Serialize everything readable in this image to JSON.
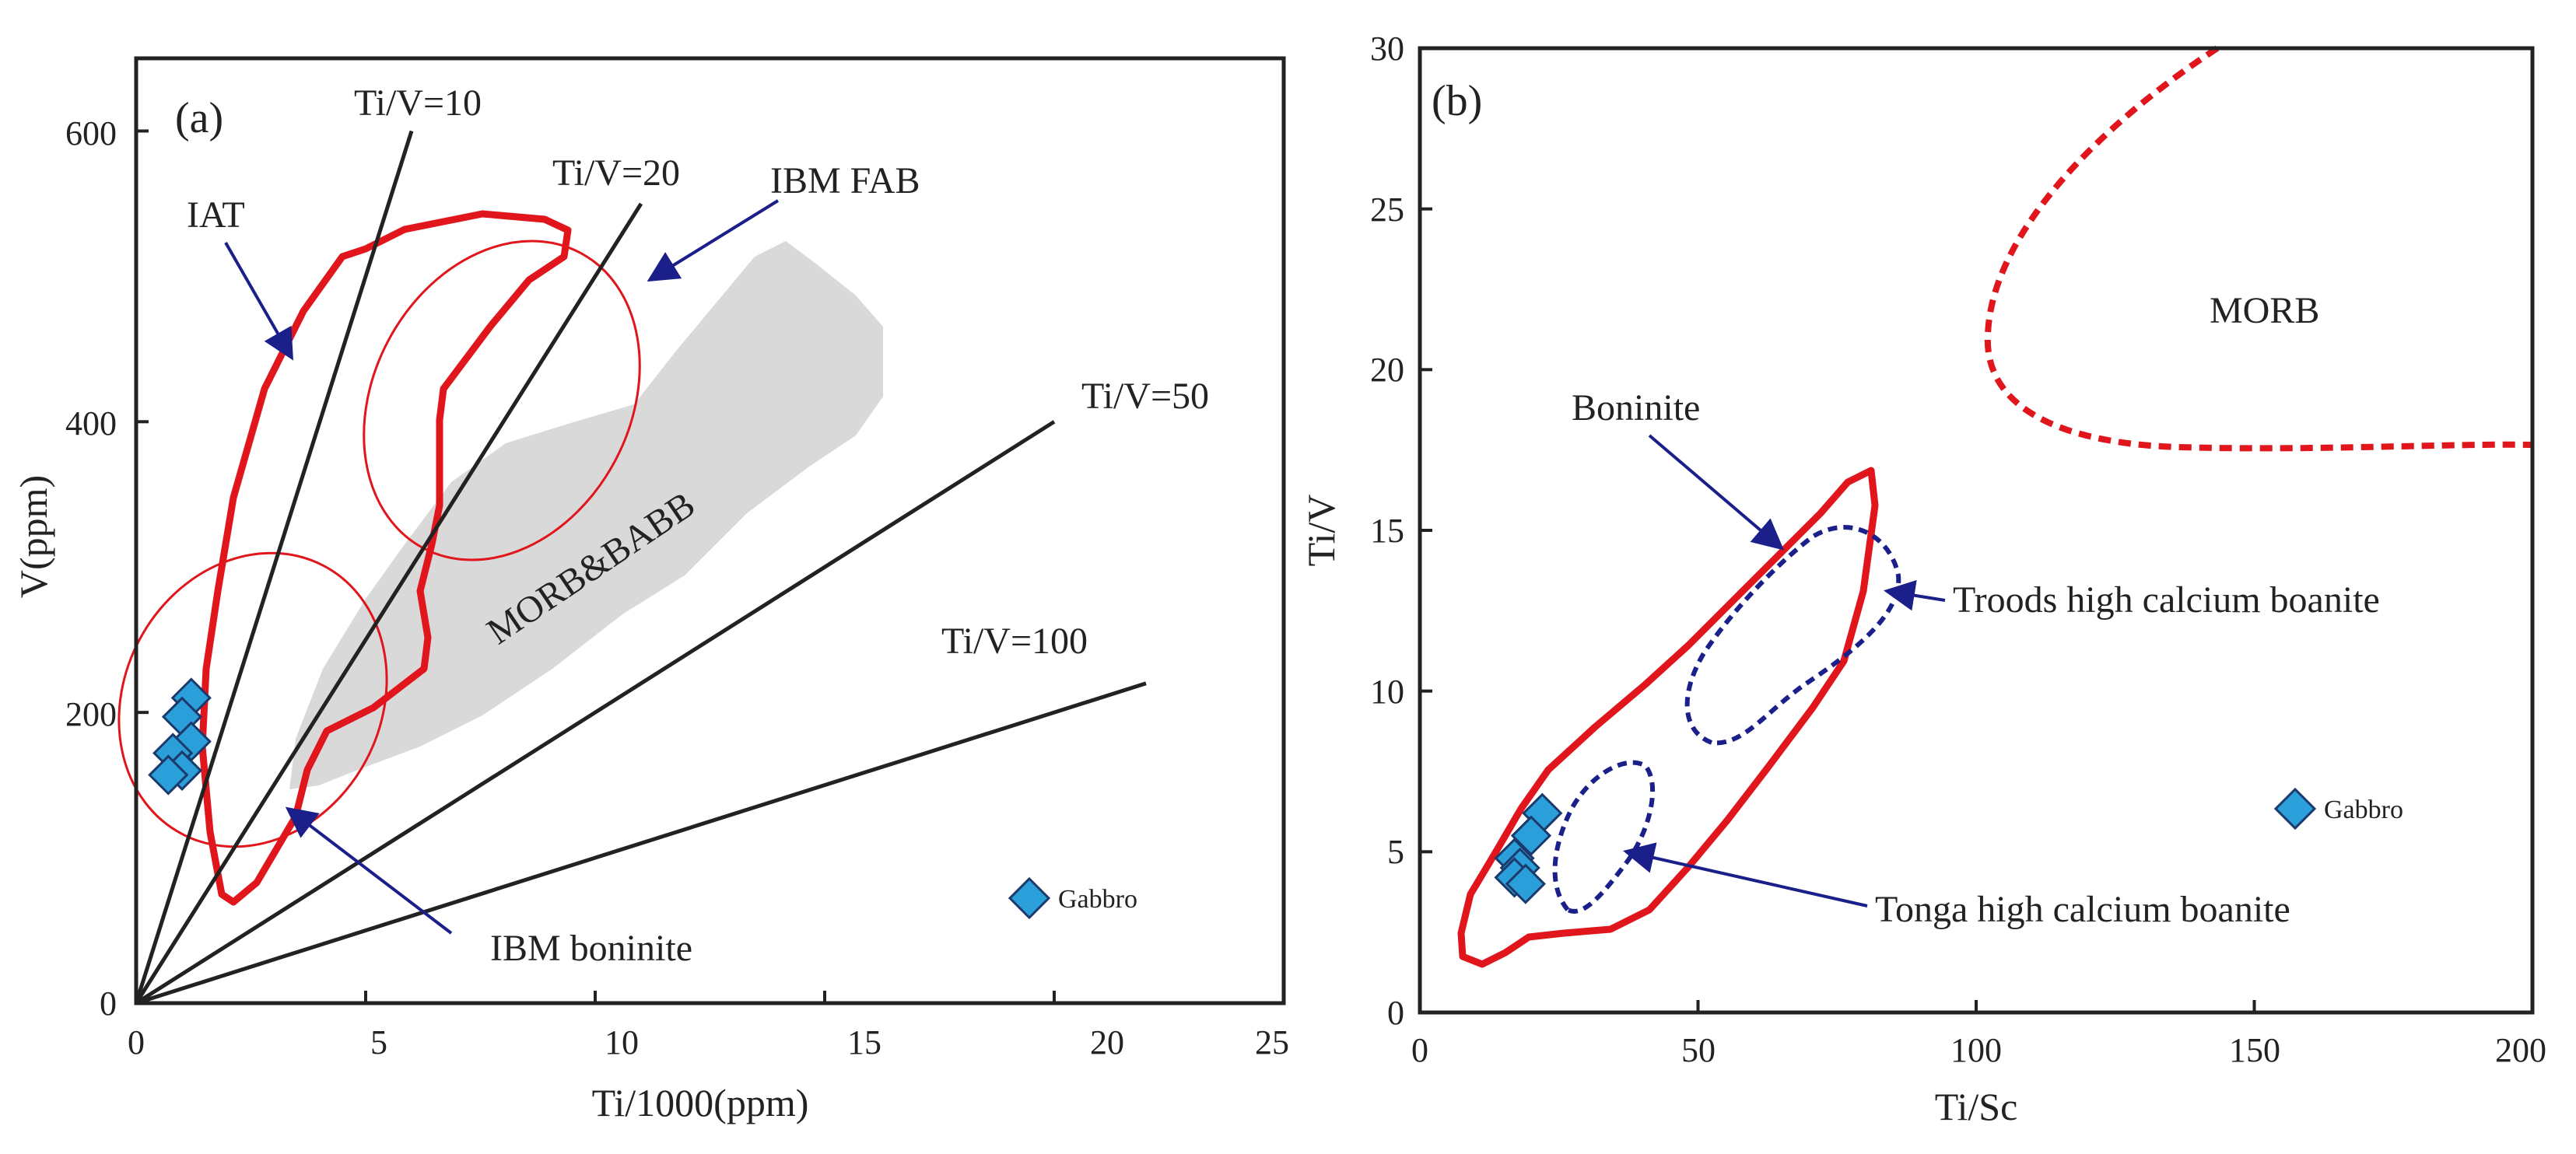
{
  "colors": {
    "red": "#e0161c",
    "blue": "#1b1f8a",
    "gray": "#d9d9d9",
    "marker": "#2b9fd9",
    "axis": "#222222"
  },
  "chart_data": [
    {
      "type": "scatter",
      "panel_label": "(a)",
      "xlabel": "Ti/1000(ppm)",
      "ylabel": "V(ppm)",
      "xlim": [
        0,
        25
      ],
      "ylim": [
        0,
        650
      ],
      "xticks": [
        0,
        5,
        10,
        15,
        20,
        25
      ],
      "yticks": [
        0,
        200,
        400,
        600
      ],
      "series": [
        {
          "name": "Gabbro",
          "marker": "diamond",
          "points": [
            [
              1.2,
              210
            ],
            [
              1.0,
              197
            ],
            [
              1.2,
              180
            ],
            [
              0.8,
              172
            ],
            [
              1.0,
              160
            ],
            [
              0.7,
              157
            ]
          ]
        }
      ],
      "lines": [
        {
          "label": "Ti/V=10",
          "ratio": 10,
          "end": [
            6.0,
            600
          ]
        },
        {
          "label": "Ti/V=20",
          "ratio": 20,
          "end": [
            11.0,
            550
          ]
        },
        {
          "label": "Ti/V=50",
          "ratio": 50,
          "end": [
            20.0,
            400
          ]
        },
        {
          "label": "Ti/V=100",
          "ratio": 100,
          "end": [
            22.0,
            220
          ]
        }
      ],
      "fields": [
        {
          "label": "IAT",
          "style": "red-thick"
        },
        {
          "label": "IBM FAB",
          "style": "red-ellipse"
        },
        {
          "label": "IBM boninite",
          "style": "red-ellipse"
        },
        {
          "label": "MORB&BABB",
          "style": "gray-fill"
        }
      ],
      "legend": {
        "label": "Gabbro",
        "position": "bottom-right"
      }
    },
    {
      "type": "scatter",
      "panel_label": "(b)",
      "xlabel": "Ti/Sc",
      "ylabel": "Ti/V",
      "xlim": [
        0,
        200
      ],
      "ylim": [
        0,
        30
      ],
      "xticks": [
        0,
        50,
        100,
        150,
        200
      ],
      "yticks": [
        0,
        5,
        10,
        15,
        20,
        25,
        30
      ],
      "series": [
        {
          "name": "Gabbro",
          "marker": "diamond",
          "points": [
            [
              22,
              6.2
            ],
            [
              20,
              5.5
            ],
            [
              17,
              4.8
            ],
            [
              18,
              4.5
            ],
            [
              17,
              4.2
            ],
            [
              19,
              4.0
            ]
          ]
        }
      ],
      "fields": [
        {
          "label": "MORB",
          "style": "red-dashed"
        },
        {
          "label": "Boninite",
          "style": "red-thick"
        },
        {
          "label": "Troods high calcium boanite",
          "style": "blue-dashed"
        },
        {
          "label": "Tonga high calcium boanite",
          "style": "blue-dashed"
        }
      ],
      "legend": {
        "label": "Gabbro",
        "position": "right"
      }
    }
  ]
}
